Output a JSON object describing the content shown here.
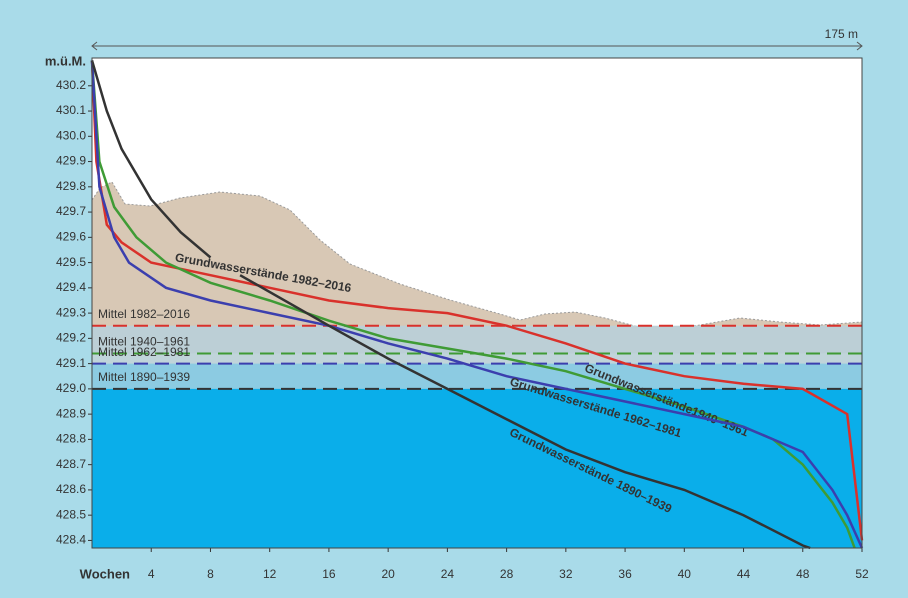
{
  "chart_data": {
    "type": "line",
    "y_label": "m.ü.M.",
    "x_label": "Wochen",
    "scale_label": "175 m",
    "xlim": [
      0,
      52
    ],
    "ylim": [
      428.37,
      430.31
    ],
    "xticks": [
      4,
      8,
      12,
      16,
      20,
      24,
      28,
      32,
      36,
      40,
      44,
      48,
      52
    ],
    "yticks": [
      {
        "value": 428.4,
        "label": "428.4"
      },
      428.5,
      428.6,
      428.7,
      428.8,
      428.9,
      {
        "value": 429,
        "label": "429.0"
      },
      429.1,
      429.2,
      429.3,
      429.4,
      429.5,
      429.6,
      429.7,
      429.8,
      429.9,
      {
        "value": 430,
        "label": "430.0"
      },
      430.1,
      430.2
    ],
    "reference_lines": [
      {
        "name": "Mittel 1982–2016",
        "color": "#d9312b",
        "value": 429.25
      },
      {
        "name": "Mittel 1940–1961",
        "color": "#3f9b35",
        "value": 429.14
      },
      {
        "name": "Mittel 1962–1981",
        "color": "#3b3fae",
        "value": 429.1
      },
      {
        "name": "Mittel 1890–1939",
        "color": "#333333",
        "value": 429.0
      }
    ],
    "series": [
      {
        "name": "Grundwasserstände 1982–2016",
        "color": "#d9312b",
        "x": [
          0,
          0.3,
          1,
          2,
          4,
          8,
          12,
          16,
          20,
          24,
          28,
          32,
          36,
          40,
          44,
          48,
          51,
          52
        ],
        "values": [
          430.3,
          429.9,
          429.65,
          429.58,
          429.5,
          429.45,
          429.4,
          429.35,
          429.32,
          429.3,
          429.25,
          429.18,
          429.1,
          429.05,
          429.02,
          429.0,
          428.9,
          428.4
        ]
      },
      {
        "name": "Grundwasserstände1940–1961",
        "color": "#3f9b35",
        "x": [
          0,
          0.5,
          1.5,
          3,
          5,
          8,
          12,
          16,
          20,
          24,
          28,
          32,
          36,
          40,
          44,
          46,
          48,
          50,
          51,
          51.5
        ],
        "values": [
          430.3,
          429.9,
          429.72,
          429.6,
          429.5,
          429.42,
          429.35,
          429.27,
          429.2,
          429.16,
          429.12,
          429.07,
          429.0,
          428.93,
          428.85,
          428.8,
          428.7,
          428.55,
          428.45,
          428.37
        ]
      },
      {
        "name": "Grundwasserstände 1962–1981",
        "color": "#3b3fae",
        "x": [
          0,
          0.5,
          1.5,
          2.5,
          5,
          8,
          12,
          16,
          20,
          24,
          28,
          32,
          36,
          40,
          44,
          46,
          48,
          50,
          51,
          52
        ],
        "values": [
          430.3,
          429.8,
          429.6,
          429.5,
          429.4,
          429.35,
          429.3,
          429.25,
          429.18,
          429.12,
          429.05,
          429.0,
          428.95,
          428.9,
          428.85,
          428.8,
          428.75,
          428.6,
          428.5,
          428.37
        ]
      },
      {
        "name": "Grundwasserstände 1890–1939",
        "color": "#333333",
        "x": [
          0,
          1,
          2,
          4,
          6,
          8,
          9,
          10,
          16,
          20,
          24,
          28,
          32,
          36,
          40,
          44,
          48,
          48.5
        ],
        "values": [
          430.3,
          430.1,
          429.95,
          429.75,
          429.62,
          429.52,
          null,
          429.45,
          429.25,
          429.12,
          429.0,
          428.88,
          428.76,
          428.67,
          428.6,
          428.5,
          428.38,
          428.37
        ]
      }
    ]
  }
}
